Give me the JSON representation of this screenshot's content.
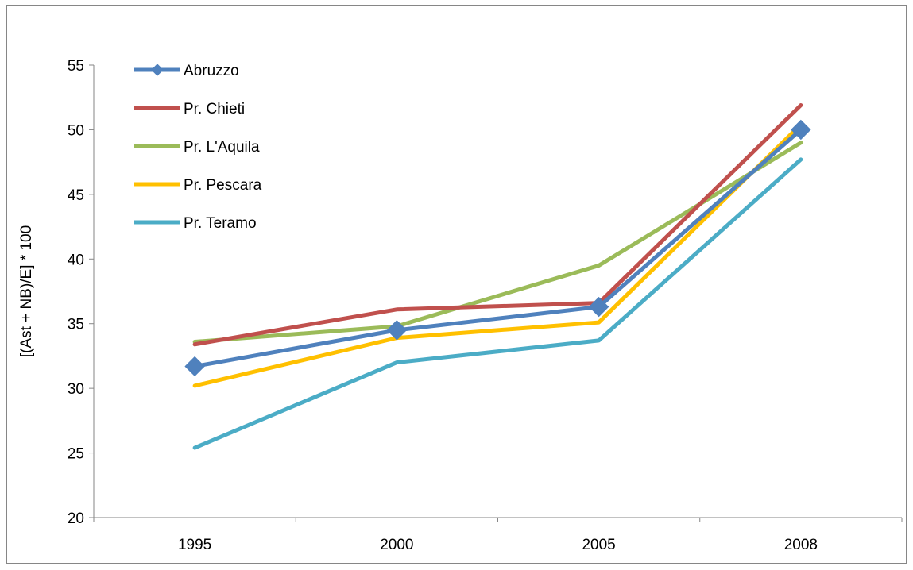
{
  "chart_data": {
    "type": "line",
    "title": "",
    "xlabel": "",
    "ylabel": "[(Ast + NB)/E] * 100",
    "categories": [
      "1995",
      "2000",
      "2005",
      "2008"
    ],
    "ylim": [
      20,
      55
    ],
    "yticks": [
      20,
      25,
      30,
      35,
      40,
      45,
      50,
      55
    ],
    "grid": false,
    "legend_position": "top-left",
    "series": [
      {
        "name": "Abruzzo",
        "values": [
          31.7,
          34.5,
          36.3,
          50.0
        ],
        "color": "#4f81bd",
        "marker": "diamond"
      },
      {
        "name": "Pr. Chieti",
        "values": [
          33.4,
          36.1,
          36.6,
          51.9
        ],
        "color": "#c0504d",
        "marker": "none"
      },
      {
        "name": "Pr. L'Aquila",
        "values": [
          33.6,
          34.8,
          39.5,
          49.0
        ],
        "color": "#9bbb59",
        "marker": "none"
      },
      {
        "name": "Pr. Pescara",
        "values": [
          30.2,
          33.9,
          35.1,
          50.4
        ],
        "color": "#ffc000",
        "marker": "none"
      },
      {
        "name": "Pr. Teramo",
        "values": [
          25.4,
          32.0,
          33.7,
          47.7
        ],
        "color": "#4bacc6",
        "marker": "none"
      }
    ]
  }
}
